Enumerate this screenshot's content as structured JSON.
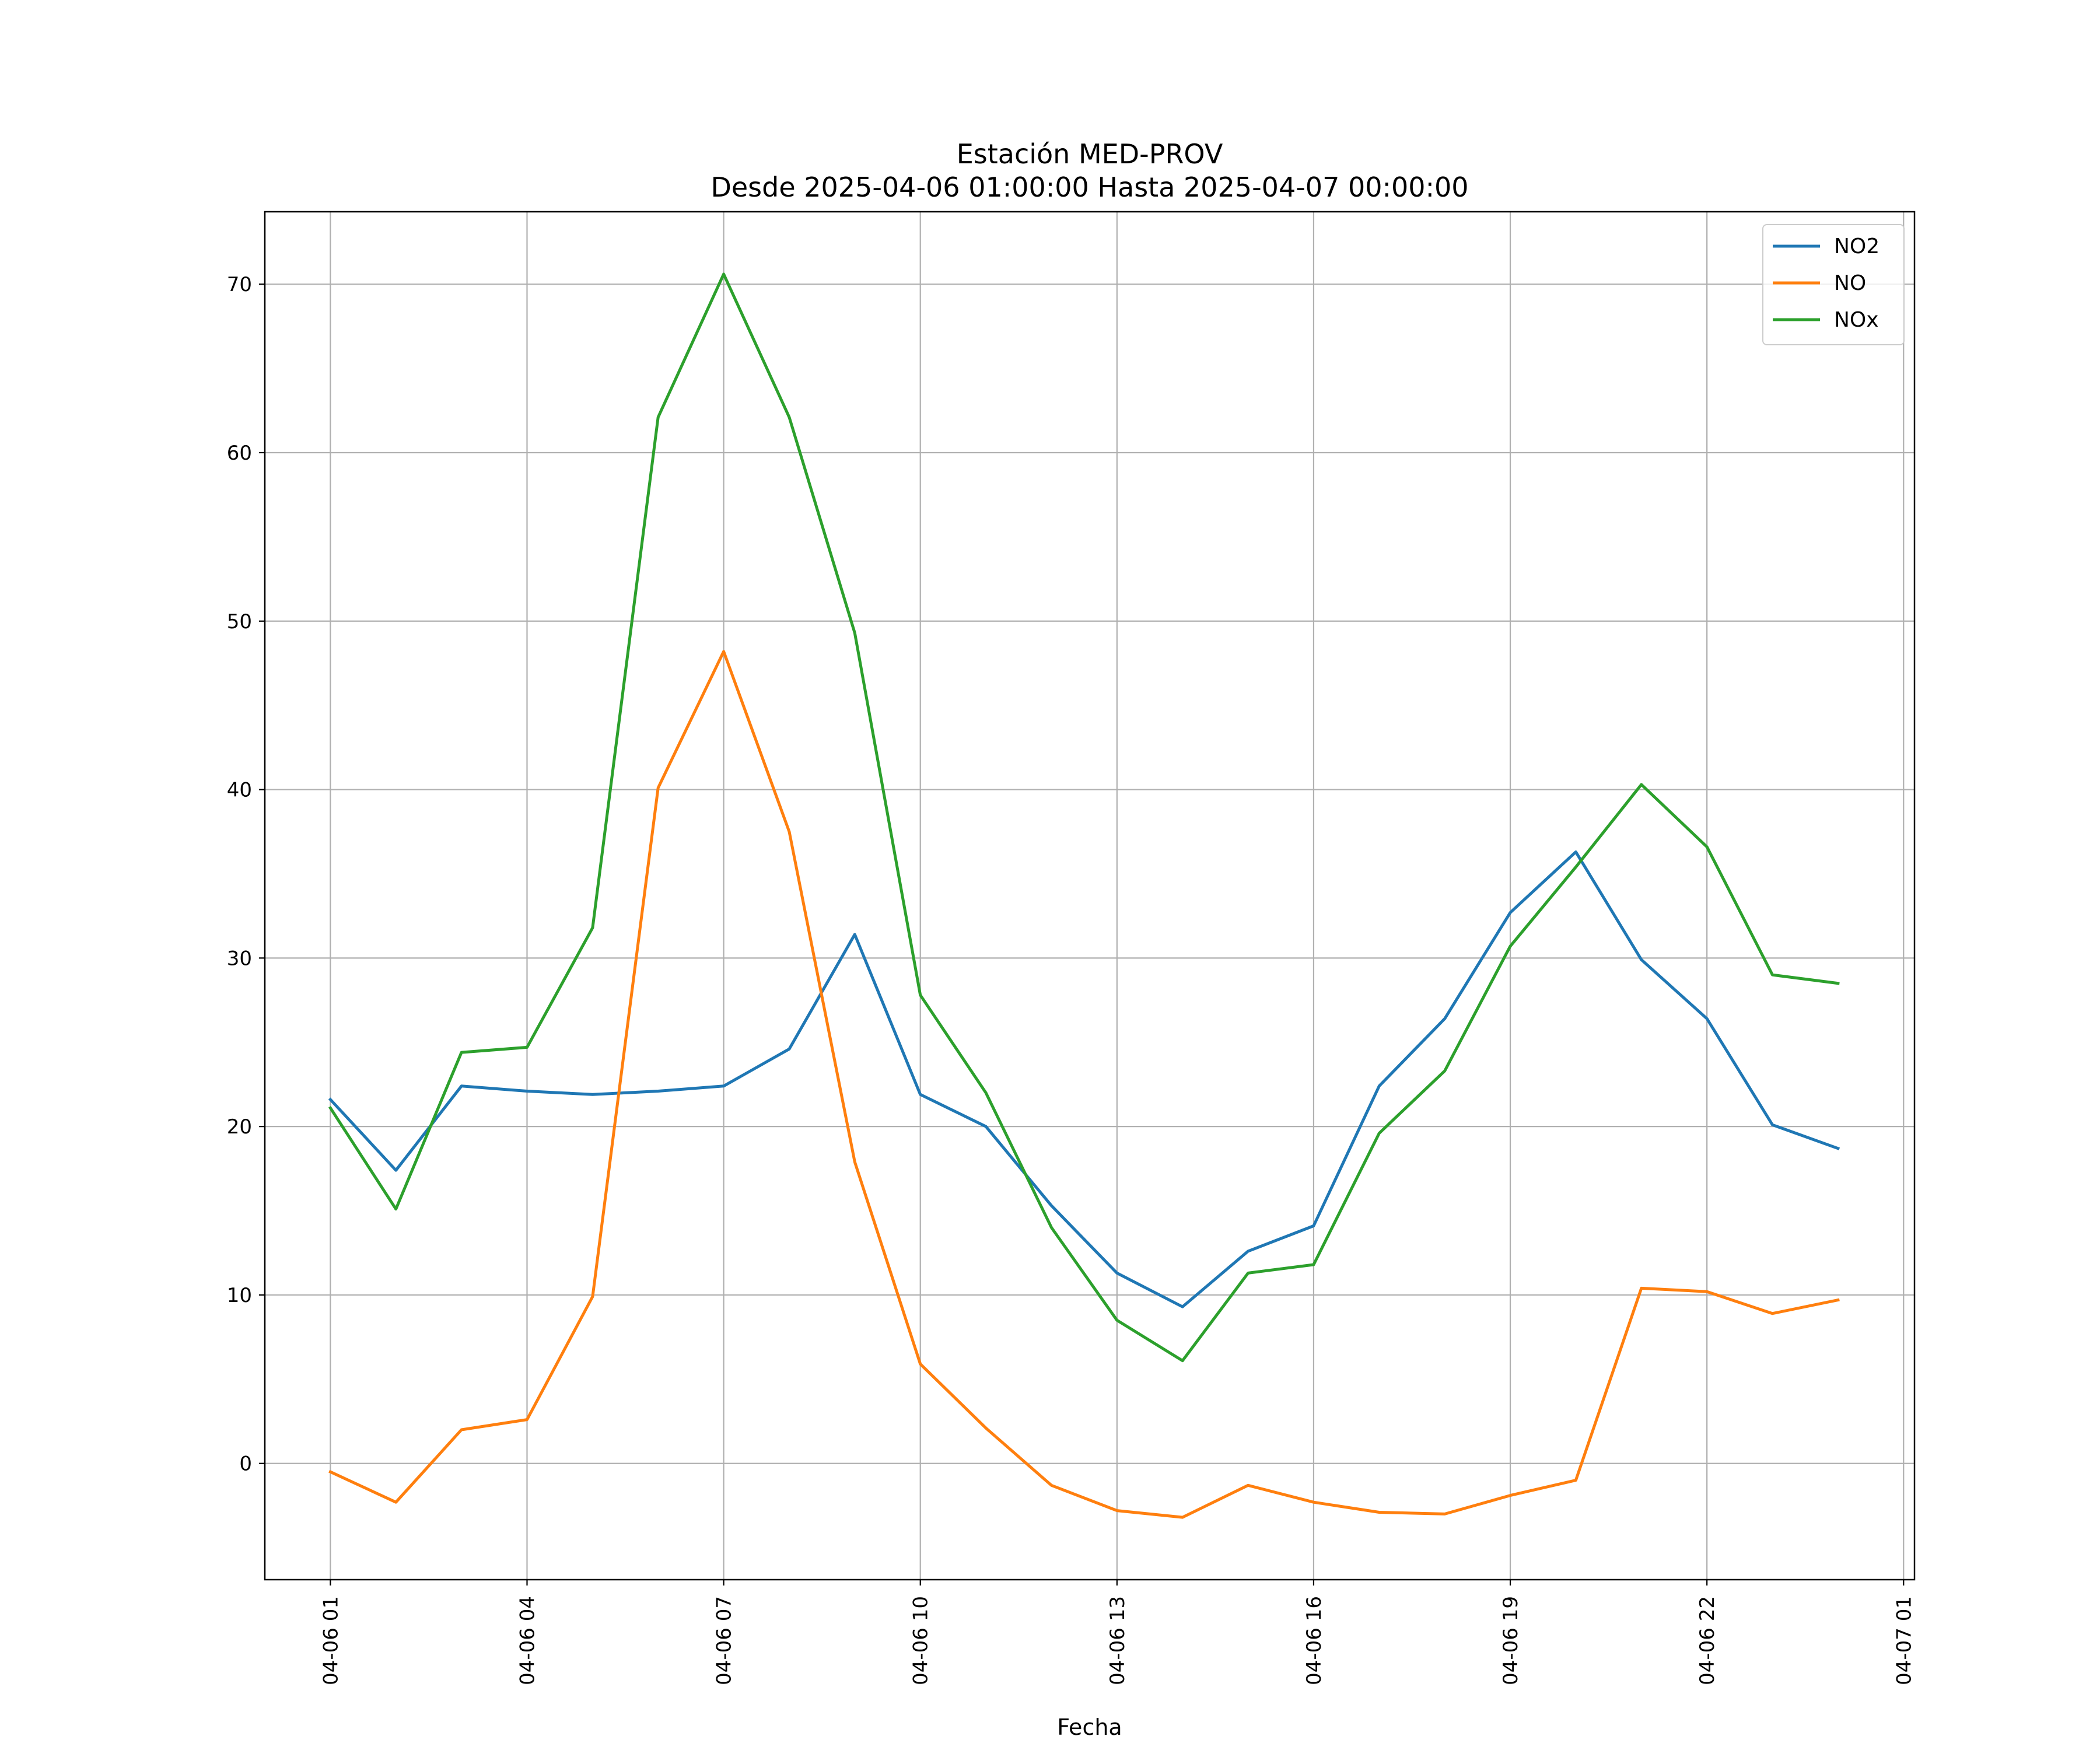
{
  "chart_data": {
    "type": "line",
    "title": "Estación MED-PROV",
    "subtitle": "Desde 2025-04-06 01:00:00 Hasta 2025-04-07 00:00:00",
    "xlabel": "Fecha",
    "ylabel": "",
    "x": [
      "2025-04-06 01:00",
      "2025-04-06 02:00",
      "2025-04-06 03:00",
      "2025-04-06 04:00",
      "2025-04-06 05:00",
      "2025-04-06 06:00",
      "2025-04-06 07:00",
      "2025-04-06 08:00",
      "2025-04-06 09:00",
      "2025-04-06 10:00",
      "2025-04-06 11:00",
      "2025-04-06 12:00",
      "2025-04-06 13:00",
      "2025-04-06 14:00",
      "2025-04-06 15:00",
      "2025-04-06 16:00",
      "2025-04-06 17:00",
      "2025-04-06 18:00",
      "2025-04-06 19:00",
      "2025-04-06 20:00",
      "2025-04-06 21:00",
      "2025-04-06 22:00",
      "2025-04-06 23:00",
      "2025-04-07 00:00"
    ],
    "xlim": [
      "2025-04-06 00:00",
      "2025-04-07 01:10"
    ],
    "ylim": [
      -6.9,
      74.3
    ],
    "grid": true,
    "legend_position": "top-right",
    "x_tick_labels": [
      "04-06 01",
      "04-06 04",
      "04-06 07",
      "04-06 10",
      "04-06 13",
      "04-06 16",
      "04-06 19",
      "04-06 22",
      "04-07 01"
    ],
    "x_tick_values": [
      "2025-04-06 01:00",
      "2025-04-06 04:00",
      "2025-04-06 07:00",
      "2025-04-06 10:00",
      "2025-04-06 13:00",
      "2025-04-06 16:00",
      "2025-04-06 19:00",
      "2025-04-06 22:00",
      "2025-04-07 01:00"
    ],
    "y_ticks": [
      0,
      10,
      20,
      30,
      40,
      50,
      60,
      70
    ],
    "series": [
      {
        "name": "NO2",
        "color": "#1f77b4",
        "values": [
          21.6,
          17.4,
          22.4,
          22.1,
          21.9,
          22.1,
          22.4,
          24.6,
          31.4,
          21.9,
          20.0,
          15.3,
          11.3,
          9.3,
          12.6,
          14.1,
          22.4,
          26.4,
          32.7,
          36.3,
          29.9,
          26.4,
          20.1,
          18.7
        ]
      },
      {
        "name": "NO",
        "color": "#ff7f0e",
        "values": [
          -0.5,
          -2.3,
          2.0,
          2.6,
          9.9,
          40.1,
          48.2,
          37.5,
          17.9,
          5.9,
          2.1,
          -1.3,
          -2.8,
          -3.2,
          -1.3,
          -2.3,
          -2.9,
          -3.0,
          -1.9,
          -1.0,
          10.4,
          10.2,
          8.9,
          9.7
        ]
      },
      {
        "name": "NOx",
        "color": "#2ca02c",
        "values": [
          21.1,
          15.1,
          24.4,
          24.7,
          31.8,
          62.1,
          70.6,
          62.1,
          49.3,
          27.8,
          22.0,
          14.0,
          8.5,
          6.1,
          11.3,
          11.8,
          19.6,
          23.3,
          30.7,
          35.4,
          40.3,
          36.6,
          29.0,
          28.5
        ]
      }
    ]
  }
}
